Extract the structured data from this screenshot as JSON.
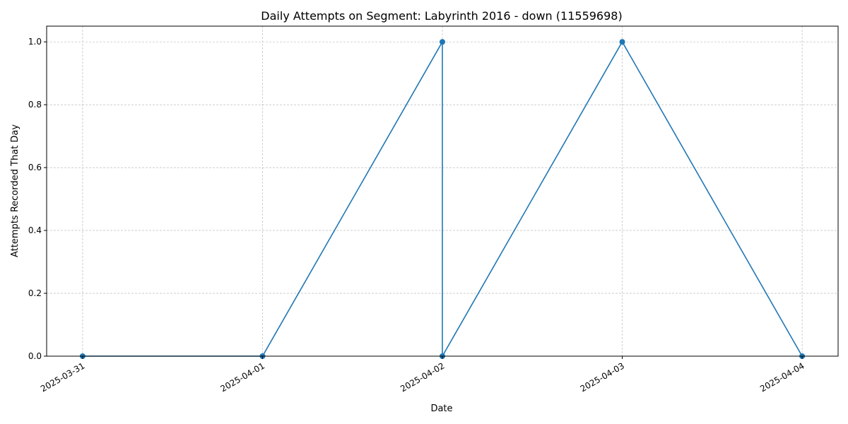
{
  "chart_data": {
    "type": "line",
    "title": "Daily Attempts on Segment: Labyrinth 2016 - down (11559698)",
    "xlabel": "Date",
    "ylabel": "Attempts Recorded That Day",
    "x_ticks": [
      "2025-03-31",
      "2025-04-01",
      "2025-04-02",
      "2025-04-03",
      "2025-04-04"
    ],
    "y_ticks": [
      "0.0",
      "0.2",
      "0.4",
      "0.6",
      "0.8",
      "1.0"
    ],
    "xlim": [
      "2025-03-30T19:12",
      "2025-04-04T04:48"
    ],
    "ylim": [
      0,
      1.05
    ],
    "grid": true,
    "series": [
      {
        "color": "#1f77b4",
        "marker": "circle",
        "points": [
          {
            "x": "2025-03-31",
            "y": 0
          },
          {
            "x": "2025-04-01",
            "y": 0
          },
          {
            "x": "2025-04-02",
            "y": 1
          },
          {
            "x": "2025-04-02",
            "y": 0
          },
          {
            "x": "2025-04-03",
            "y": 1
          },
          {
            "x": "2025-04-04",
            "y": 0
          }
        ]
      }
    ]
  }
}
